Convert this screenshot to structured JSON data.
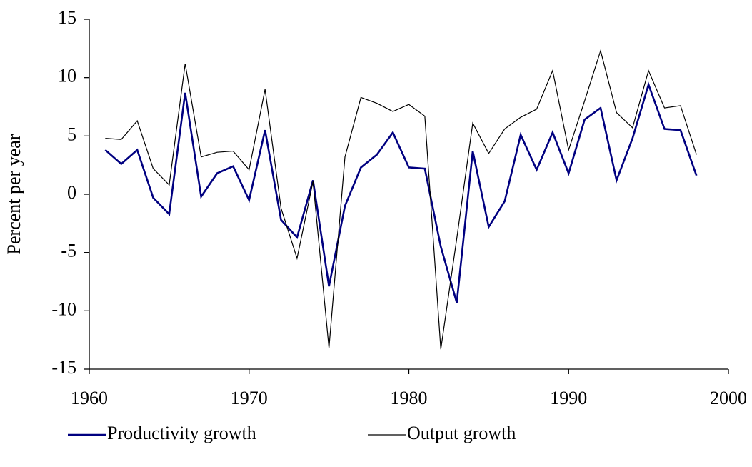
{
  "chart_data": {
    "type": "line",
    "ylabel": "Percent per year",
    "x": [
      1961,
      1962,
      1963,
      1964,
      1965,
      1966,
      1967,
      1968,
      1969,
      1970,
      1971,
      1972,
      1973,
      1974,
      1975,
      1976,
      1977,
      1978,
      1979,
      1980,
      1981,
      1982,
      1983,
      1984,
      1985,
      1986,
      1987,
      1988,
      1989,
      1990,
      1991,
      1992,
      1993,
      1994,
      1995,
      1996,
      1997,
      1998
    ],
    "series": [
      {
        "name": "Productivity growth",
        "color": "#000080",
        "values": [
          3.8,
          2.6,
          3.8,
          -0.3,
          -1.7,
          8.7,
          -0.2,
          1.8,
          2.4,
          -0.5,
          5.5,
          -2.2,
          -3.7,
          1.2,
          -7.9,
          -1.0,
          2.3,
          3.4,
          5.3,
          2.3,
          2.2,
          -4.5,
          -9.3,
          3.7,
          -2.8,
          -0.6,
          5.1,
          2.1,
          5.3,
          1.8,
          6.4,
          7.4,
          1.2,
          4.8,
          9.4,
          5.6,
          5.5,
          1.6
        ]
      },
      {
        "name": "Output growth",
        "color": "#000000",
        "values": [
          4.8,
          4.7,
          6.3,
          2.2,
          0.8,
          11.2,
          3.2,
          3.6,
          3.7,
          2.1,
          9.0,
          -1.2,
          -5.5,
          1.1,
          -13.2,
          3.2,
          8.3,
          7.8,
          7.1,
          7.7,
          6.7,
          -13.3,
          -3.8,
          6.1,
          3.5,
          5.6,
          6.6,
          7.3,
          10.6,
          3.8,
          8.0,
          12.3,
          7.0,
          5.7,
          10.6,
          7.4,
          7.6,
          3.4
        ]
      }
    ],
    "xlim": [
      1960,
      2000
    ],
    "xticks": [
      1960,
      1970,
      1980,
      1990,
      2000
    ],
    "ylim": [
      -15,
      15
    ],
    "yticks": [
      -15,
      -10,
      -5,
      0,
      5,
      10,
      15
    ],
    "grid": false,
    "legend": "bottom"
  }
}
